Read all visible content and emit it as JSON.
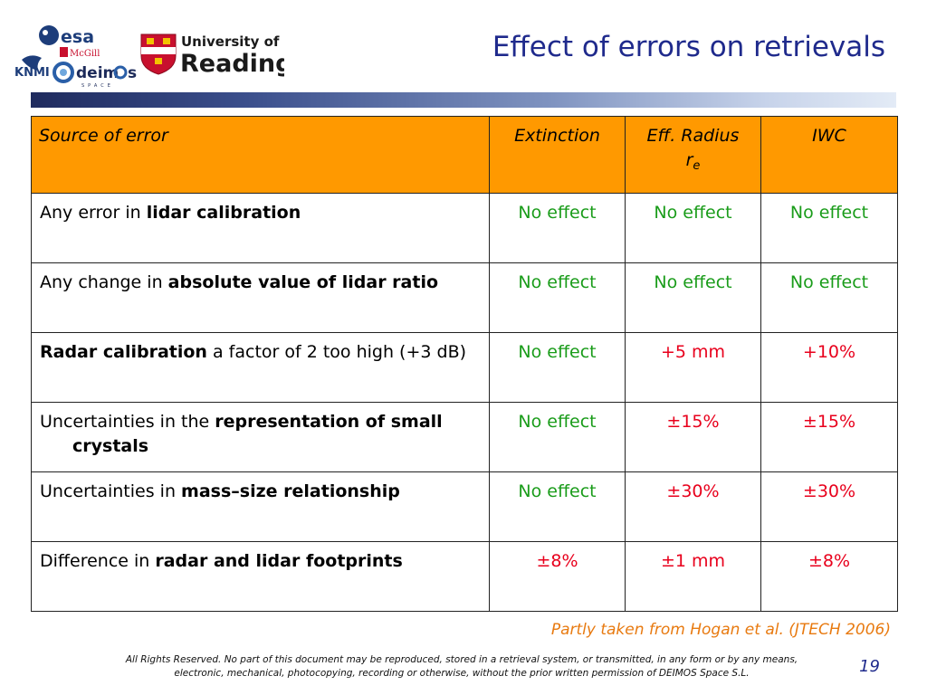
{
  "logos": {
    "esa": "esa",
    "mcgill": "McGill",
    "knmi": "KNMI",
    "deimos": "deim",
    "deimos_tail": "s",
    "deimos_sub": "SPACE",
    "reading_line1": "University of",
    "reading_line2": "Reading"
  },
  "title": "Effect of errors on retrievals",
  "table": {
    "headers": {
      "source": "Source of error",
      "extinction": "Extinction",
      "radius": "Eff. Radius",
      "radius_symbol": "r",
      "radius_sub": "e",
      "iwc": "IWC"
    },
    "rows": [
      {
        "pre": "Any error in ",
        "bold": "lidar calibration",
        "post": "",
        "ext": "No effect",
        "rad": "No effect",
        "iwc": "No effect"
      },
      {
        "pre": "Any change in ",
        "bold": "absolute value of lidar ratio",
        "post": "",
        "ext": "No effect",
        "rad": "No effect",
        "iwc": "No effect"
      },
      {
        "pre": "",
        "bold": "Radar calibration",
        "post": " a factor of 2 too high (+3 dB)",
        "ext": "No effect",
        "rad": "+5 mm",
        "iwc": "+10%"
      },
      {
        "pre": "Uncertainties in the ",
        "bold": "representation of small crystals",
        "post": "",
        "ext": "No effect",
        "rad": "±15%",
        "iwc": "±15%"
      },
      {
        "pre": "Uncertainties in ",
        "bold": "mass–size relationship",
        "post": "",
        "ext": "No effect",
        "rad": "±30%",
        "iwc": "±30%"
      },
      {
        "pre": "Difference in ",
        "bold": "radar and lidar footprints",
        "post": "",
        "ext": "±8%",
        "rad": "±1 mm",
        "iwc": "±8%"
      }
    ]
  },
  "colors": {
    "no_effect": "#1a9c1a",
    "effect": "#e8001c",
    "header_bg": "#ff9900",
    "title": "#1f2a8c"
  },
  "credit": "Partly taken from Hogan et al. (JTECH 2006)",
  "footer": "All Rights Reserved. No part of this document may be reproduced, stored in a retrieval system, or transmitted, in any form or by any means, electronic, mechanical, photocopying, recording or otherwise, without the prior written permission of DEIMOS Space S.L.",
  "page_number": "19"
}
